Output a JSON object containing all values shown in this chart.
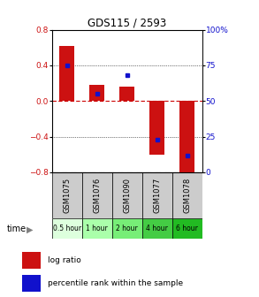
{
  "title": "GDS115 / 2593",
  "samples": [
    "GSM1075",
    "GSM1076",
    "GSM1090",
    "GSM1077",
    "GSM1078"
  ],
  "time_labels": [
    "0.5 hour",
    "1 hour",
    "2 hour",
    "4 hour",
    "6 hour"
  ],
  "time_colors": [
    "#ddffdd",
    "#aaffaa",
    "#77ee77",
    "#44cc44",
    "#22bb22"
  ],
  "log_ratios": [
    0.62,
    0.18,
    0.16,
    -0.6,
    -0.82
  ],
  "percentile_ranks": [
    75,
    55,
    68,
    23,
    12
  ],
  "ylim_left": [
    -0.8,
    0.8
  ],
  "ylim_right": [
    0,
    100
  ],
  "bar_color": "#cc1111",
  "percentile_color": "#1111cc",
  "bar_width": 0.5,
  "zero_line_color": "#cc0000",
  "dotted_grid_values": [
    0.4,
    -0.4
  ],
  "right_ticks": [
    0,
    25,
    50,
    75,
    100
  ],
  "right_tick_labels": [
    "0",
    "25",
    "50",
    "75",
    "100%"
  ],
  "left_ticks": [
    -0.8,
    -0.4,
    0,
    0.4,
    0.8
  ],
  "xlabel": "time",
  "legend_log_ratio": "log ratio",
  "legend_percentile": "percentile rank within the sample",
  "sample_bg": "#cccccc"
}
